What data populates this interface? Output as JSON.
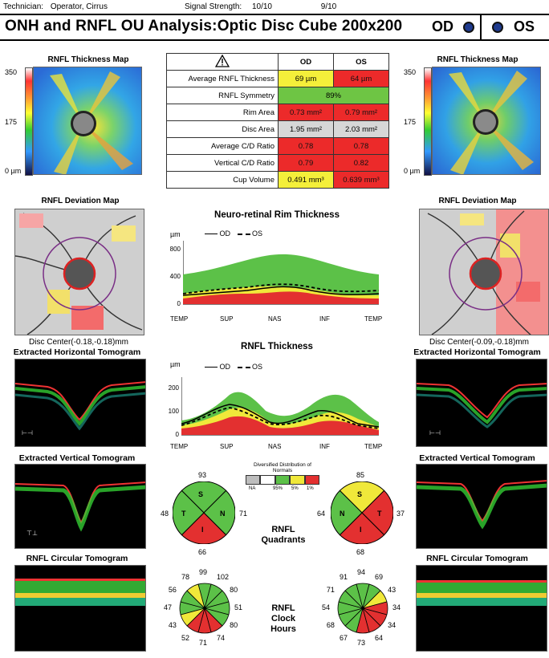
{
  "header": {
    "technician_label": "Technician:",
    "technician_value": "Operator, Cirrus",
    "signal_label": "Signal Strength:",
    "signal_od": "10/10",
    "signal_os": "9/10",
    "title": "ONH and RNFL OU Analysis:Optic Disc Cube 200x200",
    "od_label": "OD",
    "os_label": "OS"
  },
  "thickness_map": {
    "title": "RNFL Thickness Map",
    "scale_top": "350",
    "scale_mid": "175",
    "scale_bottom": "0 µm"
  },
  "metrics": {
    "warning_icon": "warning-triangle-icon",
    "col_od": "OD",
    "col_os": "OS",
    "rows": [
      {
        "label": "Average RNFL Thickness",
        "od": "69 µm",
        "os": "64 µm",
        "od_color": "yellow",
        "os_color": "red"
      },
      {
        "label": "RNFL Symmetry",
        "both": "89%",
        "color": "green"
      },
      {
        "label": "Rim Area",
        "od": "0.73 mm²",
        "os": "0.79 mm²",
        "od_color": "red",
        "os_color": "red"
      },
      {
        "label": "Disc Area",
        "od": "1.95 mm²",
        "os": "2.03 mm²",
        "od_color": "gray",
        "os_color": "gray"
      },
      {
        "label": "Average C/D Ratio",
        "od": "0.78",
        "os": "0.78",
        "od_color": "red",
        "os_color": "red"
      },
      {
        "label": "Vertical C/D Ratio",
        "od": "0.79",
        "os": "0.82",
        "od_color": "red",
        "os_color": "red"
      },
      {
        "label": "Cup Volume",
        "od": "0.491 mm³",
        "os": "0.639 mm³",
        "od_color": "yellow",
        "os_color": "red"
      }
    ]
  },
  "deviation": {
    "title": "RNFL Deviation Map",
    "od_center": "Disc Center(-0.18,-0.18)mm",
    "os_center": "Disc Center(-0.09,-0.18)mm"
  },
  "tomograms": {
    "horizontal": "Extracted Horizontal Tomogram",
    "vertical": "Extracted Vertical Tomogram",
    "circular": "RNFL Circular Tomogram"
  },
  "rim_chart": {
    "title": "Neuro-retinal Rim Thickness",
    "unit": "µm",
    "legend_od": "OD",
    "legend_os": "OS",
    "x_labels": [
      "TEMP",
      "SUP",
      "NAS",
      "INF",
      "TEMP"
    ],
    "y_ticks": [
      "800",
      "400",
      "0"
    ]
  },
  "rnfl_chart": {
    "title": "RNFL Thickness",
    "unit": "µm",
    "legend_od": "OD",
    "legend_os": "OS",
    "x_labels": [
      "TEMP",
      "SUP",
      "NAS",
      "INF",
      "TEMP"
    ],
    "y_ticks": [
      "200",
      "100",
      "0"
    ]
  },
  "distribution_legend": {
    "title": "Diversified Distribution of Normals",
    "labels": [
      "NA",
      "95%",
      "5%",
      "1%"
    ]
  },
  "quadrants": {
    "label_line1": "RNFL",
    "label_line2": "Quadrants",
    "od": {
      "top": "93",
      "left": "48",
      "right": "71",
      "bottom": "66",
      "s": "S",
      "t": "T",
      "n": "N",
      "i": "I"
    },
    "os": {
      "top": "85",
      "left": "64",
      "right": "37",
      "bottom": "68",
      "s": "S",
      "t": "T",
      "n": "N",
      "i": "I"
    }
  },
  "clock": {
    "label_line1": "RNFL",
    "label_line2": "Clock",
    "label_line3": "Hours",
    "od_values": [
      "99",
      "102",
      "80",
      "51",
      "80",
      "74",
      "71",
      "52",
      "43",
      "47",
      "56",
      "78"
    ],
    "os_values": [
      "94",
      "69",
      "43",
      "34",
      "34",
      "64",
      "73",
      "67",
      "68",
      "54",
      "71",
      "91"
    ]
  }
}
